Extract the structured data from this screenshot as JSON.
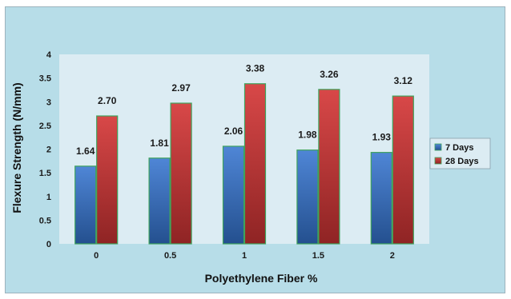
{
  "chart_data": {
    "type": "bar",
    "title": "",
    "xlabel": "Polyethylene Fiber %",
    "ylabel": "Flexure Strength (N/mm)",
    "categories": [
      "0",
      "0.5",
      "1",
      "1.5",
      "2"
    ],
    "ylim": [
      0,
      4
    ],
    "yticks": [
      "0",
      "0.5",
      "1",
      "1.5",
      "2",
      "2.5",
      "3",
      "3.5",
      "4"
    ],
    "legend_position": "right",
    "grid": false,
    "series": [
      {
        "name": "7 Days",
        "values": [
          1.64,
          1.81,
          2.06,
          1.98,
          1.93
        ],
        "labels": [
          "1.64",
          "1.81",
          "2.06",
          "1.98",
          "1.93"
        ],
        "color": "#3e6fc0"
      },
      {
        "name": "28 Days",
        "values": [
          2.7,
          2.97,
          3.38,
          3.26,
          3.12
        ],
        "labels": [
          "2.70",
          "2.97",
          "3.38",
          "3.26",
          "3.12"
        ],
        "color": "#c43a3a"
      }
    ],
    "colors": {
      "frame_background": "#b7dde8",
      "plot_background": "#dcecf3",
      "bar_border": "#3fa35c"
    }
  }
}
